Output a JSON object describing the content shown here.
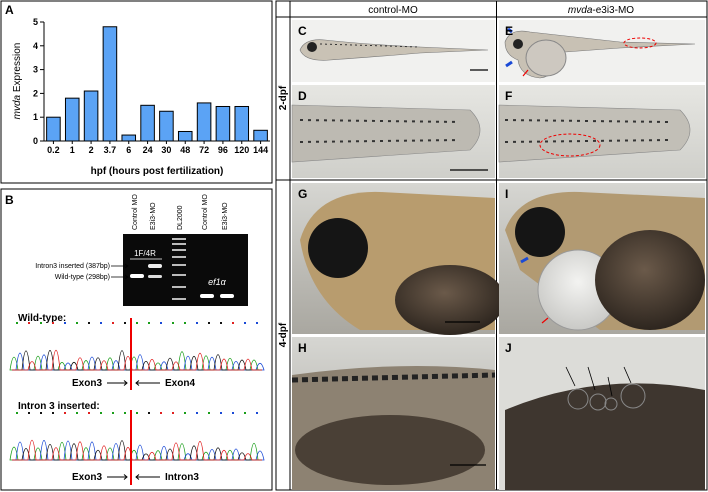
{
  "panel_a": {
    "letter": "A",
    "chart_data": {
      "type": "bar",
      "ylabel": {
        "italic": "mvda",
        "rest": " Expression"
      },
      "xlabel": "hpf (hours post fertilization)",
      "categories": [
        "0.2",
        "1",
        "2",
        "3.7",
        "6",
        "24",
        "30",
        "48",
        "72",
        "96",
        "120",
        "144"
      ],
      "values": [
        1.0,
        1.8,
        2.1,
        4.8,
        0.25,
        1.5,
        1.25,
        0.4,
        1.6,
        1.45,
        1.45,
        0.45
      ],
      "color": "#5ba3f5",
      "ylim": [
        0,
        5
      ],
      "yticks": [
        0,
        1,
        2,
        3,
        4,
        5
      ]
    }
  },
  "panel_b": {
    "letter": "B",
    "lanes": [
      "Control MO",
      "E3i3-MO",
      "DL2000",
      "Control MO",
      "E3i3-MO"
    ],
    "primer": "1F/4R",
    "control_gene": "ef1α",
    "band_labels": [
      "Intron3 inserted (387bp)",
      "Wild-type (298bp)"
    ],
    "wild_type": {
      "title": "Wild-type:",
      "left": "Exon3",
      "right": "Exon4"
    },
    "inserted": {
      "title": "Intron 3 inserted:",
      "left": "Exon3",
      "right": "Intron3"
    }
  },
  "columns": {
    "control": "control-MO",
    "morphant": {
      "italic": "mvda",
      "rest": "-e3i3-MO"
    }
  },
  "stages": [
    "2-dpf",
    "4-dpf"
  ],
  "panels": [
    "C",
    "D",
    "E",
    "F",
    "G",
    "H",
    "I",
    "J"
  ]
}
